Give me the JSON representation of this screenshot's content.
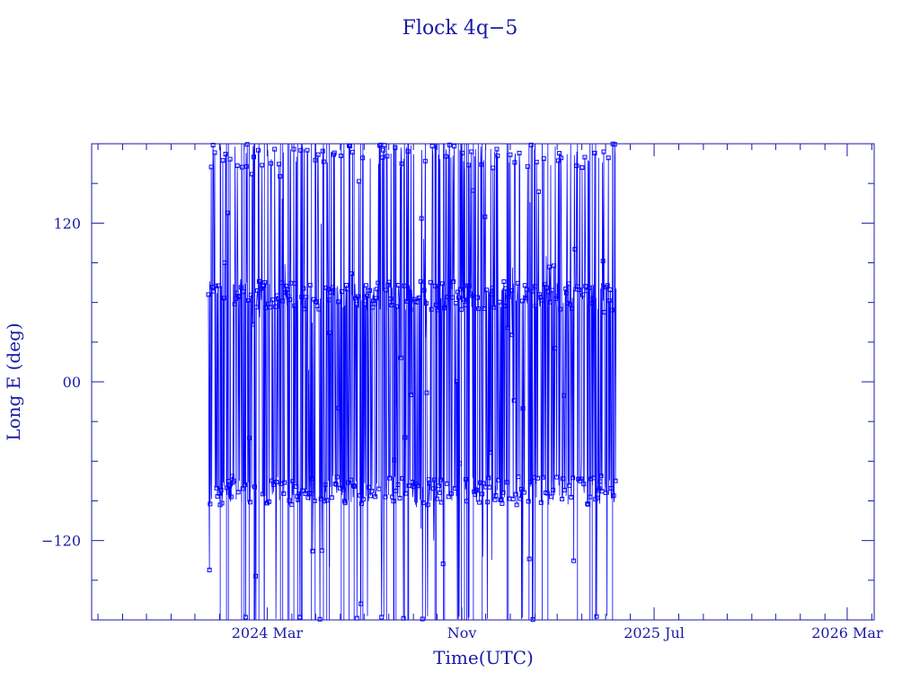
{
  "chart_data": {
    "type": "line",
    "title": "Flock 4q−5",
    "xlabel": "Time(UTC)",
    "ylabel": "Long E (deg)",
    "xlim": [
      "2023-07-24",
      "2026-04-04"
    ],
    "ylim": [
      -180,
      180
    ],
    "y_ticks": [
      {
        "value": 120,
        "label": "120"
      },
      {
        "value": 0,
        "label": "00"
      },
      {
        "value": -120,
        "label": "−120"
      }
    ],
    "x_ticks": [
      {
        "value": "2024-03-01",
        "label": "2024 Mar"
      },
      {
        "value": "2024-11-01",
        "label": "Nov"
      },
      {
        "value": "2025-07-01",
        "label": "2025 Jul"
      },
      {
        "value": "2026-03-01",
        "label": "2026 Mar"
      }
    ],
    "grid": false,
    "marker": "square",
    "data_start": "2023-12-18",
    "data_end": "2025-05-14",
    "series": [
      {
        "clusters_deg": [
          65,
          -82,
          172,
          15
        ],
        "color": "#0000ff"
      }
    ]
  }
}
